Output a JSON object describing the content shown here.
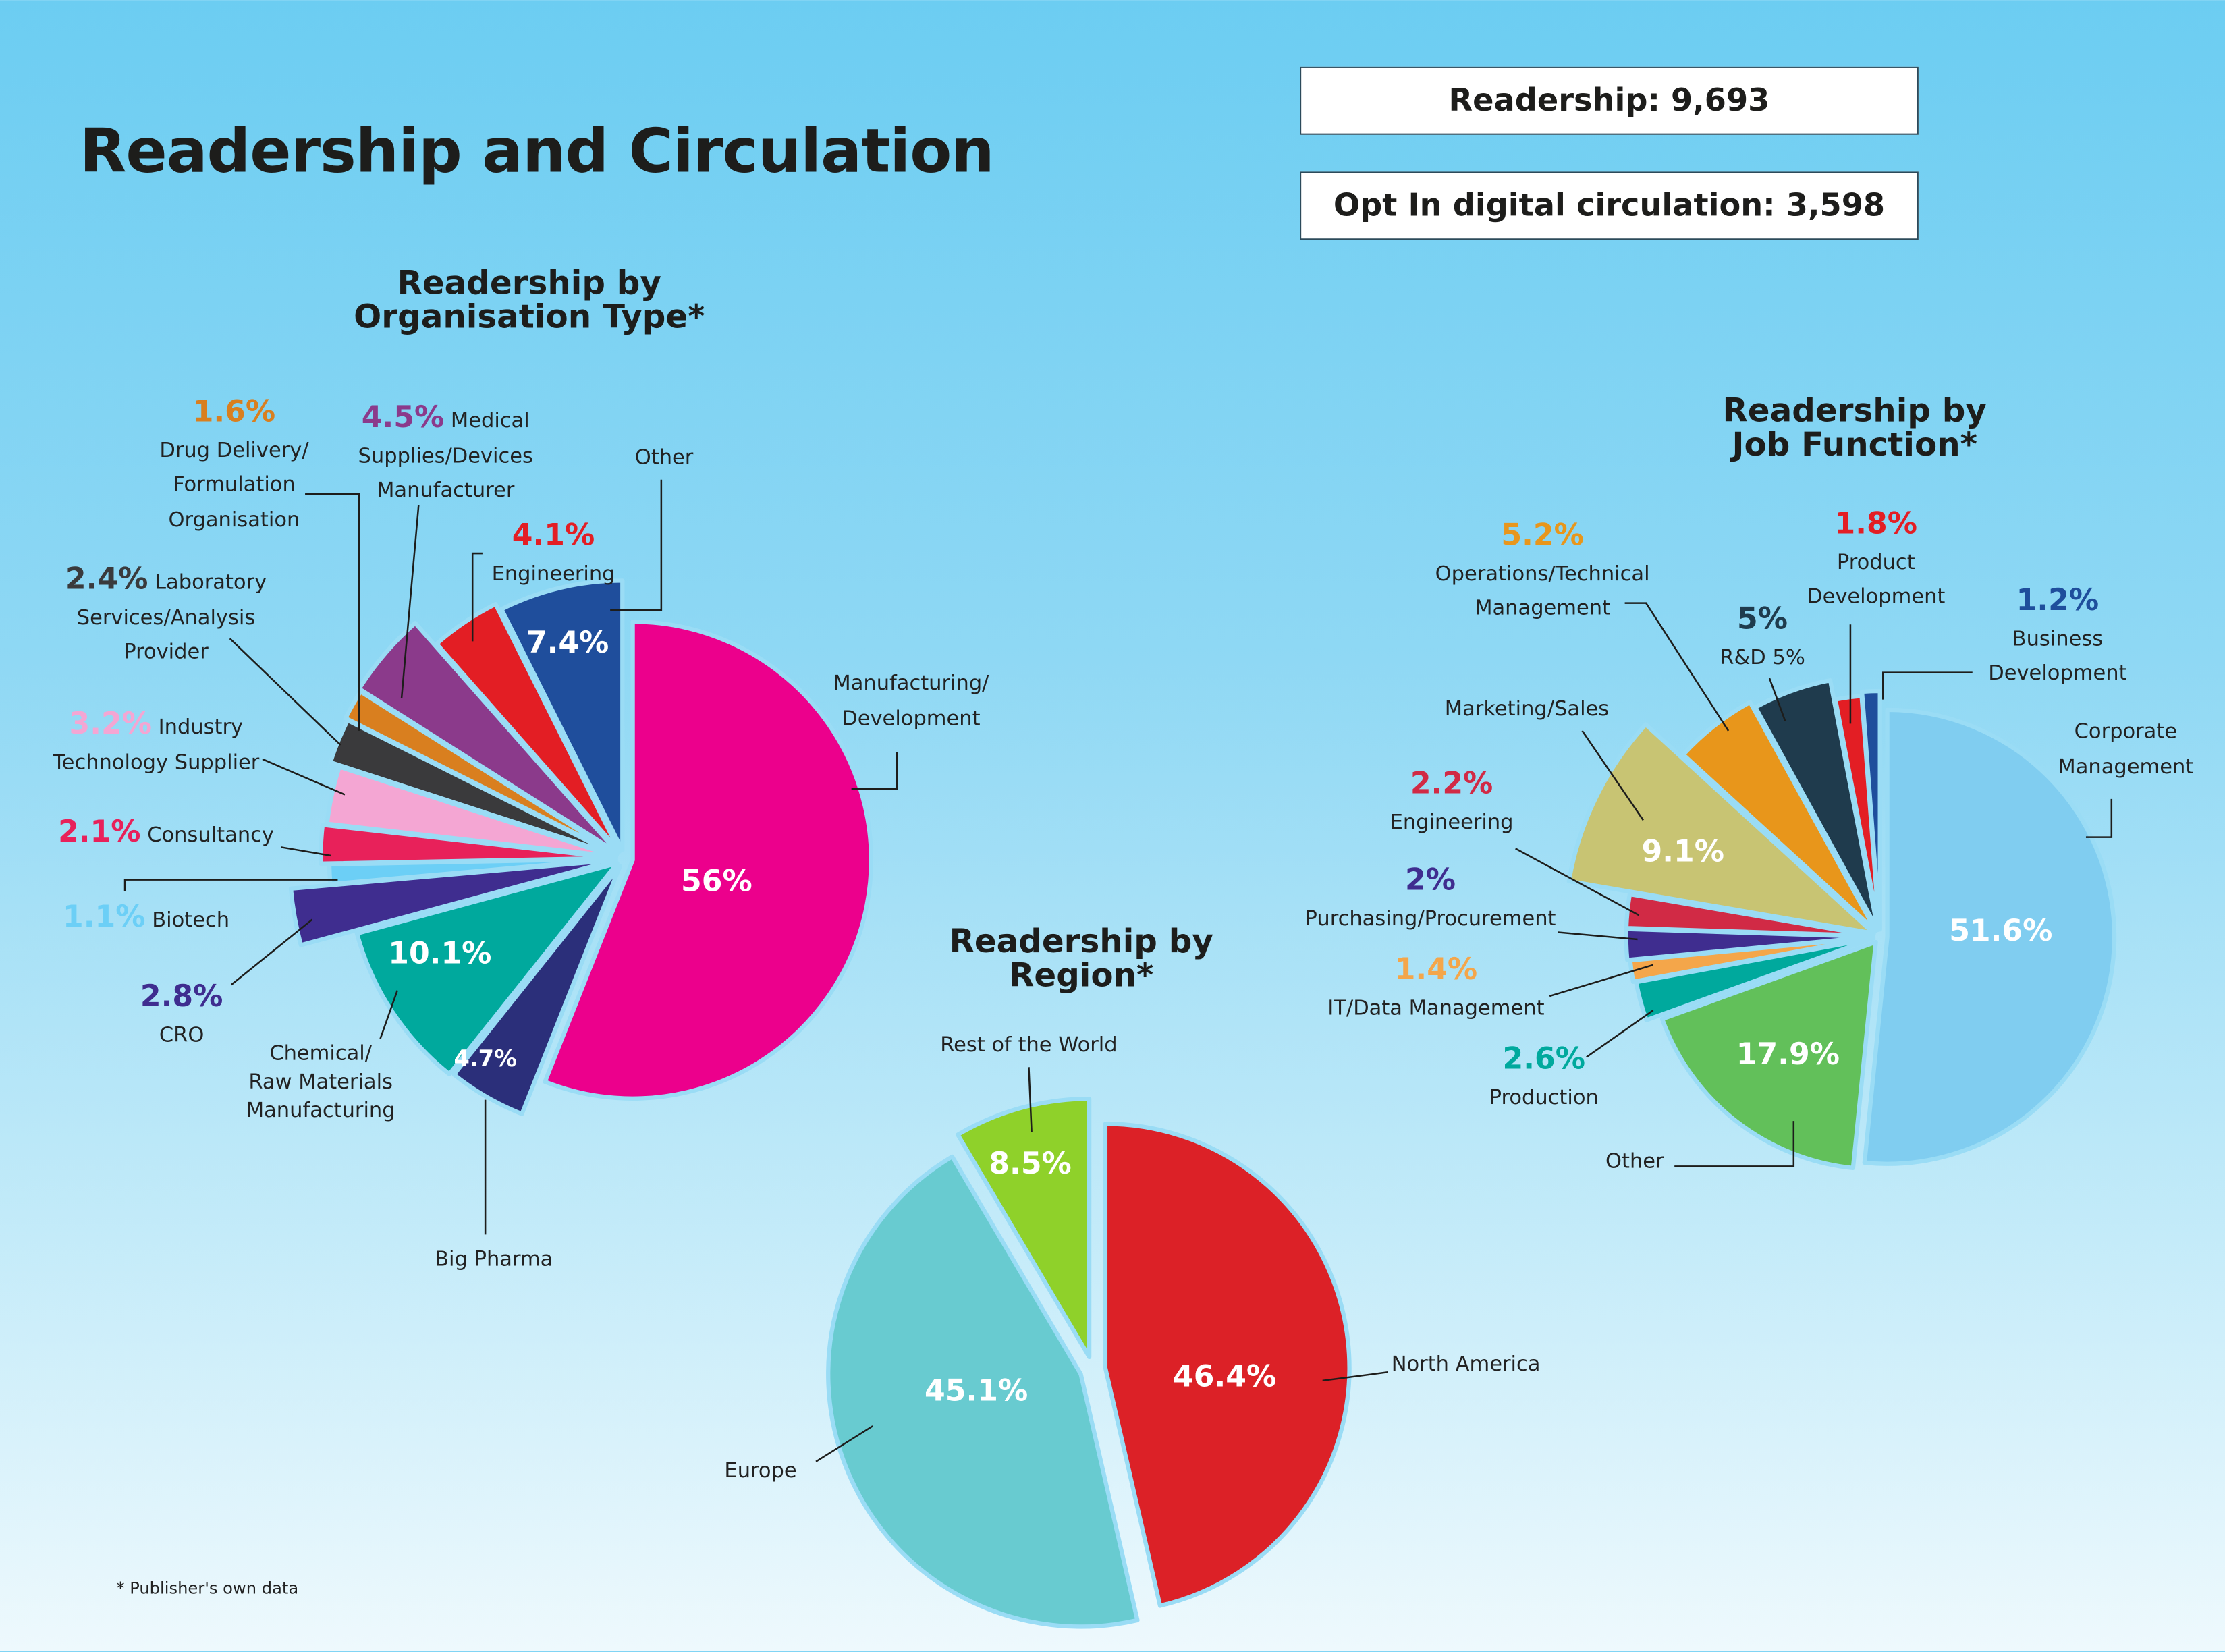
{
  "header": {
    "title": "Readership and Circulation",
    "readership": "Readership: 9,693",
    "circulation": "Opt In digital circulation: 3,598"
  },
  "footnote": "* Publisher's own data",
  "chart_data": [
    {
      "type": "pie",
      "title": "Readership by\nOrganisation Type*",
      "start": "top",
      "direction": "clockwise",
      "slices": [
        {
          "label": "Manufacturing/\nDevelopment",
          "value": 56,
          "value_label": "56%",
          "color": "#ec008c"
        },
        {
          "label": "Big Pharma",
          "value": 4.7,
          "value_label": "4.7%",
          "color": "#2b2f7a"
        },
        {
          "label": "Chemical/\nRaw Materials\nManufacturing",
          "value": 10.1,
          "value_label": "10.1%",
          "color": "#00a99d"
        },
        {
          "label": "CRO",
          "value": 2.8,
          "value_label": "2.8%",
          "color": "#3f2d8f"
        },
        {
          "label": "Biotech",
          "value": 1.1,
          "value_label": "1.1%",
          "color": "#6ccff6"
        },
        {
          "label": "Consultancy",
          "value": 2.1,
          "value_label": "2.1%",
          "color": "#e8215a"
        },
        {
          "label": "Industry\nTechnology Supplier",
          "value": 3.2,
          "value_label": "3.2%",
          "color": "#f4a6d3"
        },
        {
          "label": "Laboratory\nServices/Analysis\nProvider",
          "value": 2.4,
          "value_label": "2.4%",
          "color": "#3a3a3c"
        },
        {
          "label": "Drug Delivery/\nFormulation\nOrganisation",
          "value": 1.6,
          "value_label": "1.6%",
          "color": "#d97f1f"
        },
        {
          "label": "Medical\nSupplies/Devices\nManufacturer",
          "value": 4.5,
          "value_label": "4.5%",
          "color": "#8b3a8b"
        },
        {
          "label": "Engineering",
          "value": 4.1,
          "value_label": "4.1%",
          "color": "#e31e24"
        },
        {
          "label": "Other",
          "value": 7.4,
          "value_label": "7.4%",
          "color": "#1f4e9c"
        }
      ]
    },
    {
      "type": "pie",
      "title": "Readership by\nRegion*",
      "start": "top",
      "direction": "clockwise",
      "slices": [
        {
          "label": "North America",
          "value": 46.4,
          "value_label": "46.4%",
          "color": "#dc2127"
        },
        {
          "label": "Europe",
          "value": 45.1,
          "value_label": "45.1%",
          "color": "#68cbd0"
        },
        {
          "label": "Rest of the World",
          "value": 8.5,
          "value_label": "8.5%",
          "color": "#8fd12a"
        }
      ]
    },
    {
      "type": "pie",
      "title": "Readership by\nJob Function*",
      "start": "top",
      "direction": "clockwise",
      "slices": [
        {
          "label": "Corporate\nManagement",
          "value": 51.6,
          "value_label": "51.6%",
          "color": "#80cdf0"
        },
        {
          "label": "Other",
          "value": 17.9,
          "value_label": "17.9%",
          "color": "#62c05a"
        },
        {
          "label": "Production",
          "value": 2.6,
          "value_label": "2.6%",
          "color": "#00a99d"
        },
        {
          "label": "IT/Data Management",
          "value": 1.4,
          "value_label": "1.4%",
          "color": "#f4a64a"
        },
        {
          "label": "Purchasing/Procurement",
          "value": 2,
          "value_label": "2%",
          "color": "#3f2d8f"
        },
        {
          "label": "Engineering",
          "value": 2.2,
          "value_label": "2.2%",
          "color": "#d12a45"
        },
        {
          "label": "Marketing/Sales",
          "value": 9.1,
          "value_label": "9.1%",
          "color": "#c8c473"
        },
        {
          "label": "Operations/Technical\nManagement",
          "value": 5.2,
          "value_label": "5.2%",
          "color": "#e8961b"
        },
        {
          "label": "R&D 5%",
          "value": 5,
          "value_label": "5%",
          "color": "#1f3b4d"
        },
        {
          "label": "Product\nDevelopment",
          "value": 1.8,
          "value_label": "1.8%",
          "color": "#e31e24"
        },
        {
          "label": "Business\nDevelopment",
          "value": 1.2,
          "value_label": "1.2%",
          "color": "#1f4e9c"
        }
      ]
    }
  ]
}
